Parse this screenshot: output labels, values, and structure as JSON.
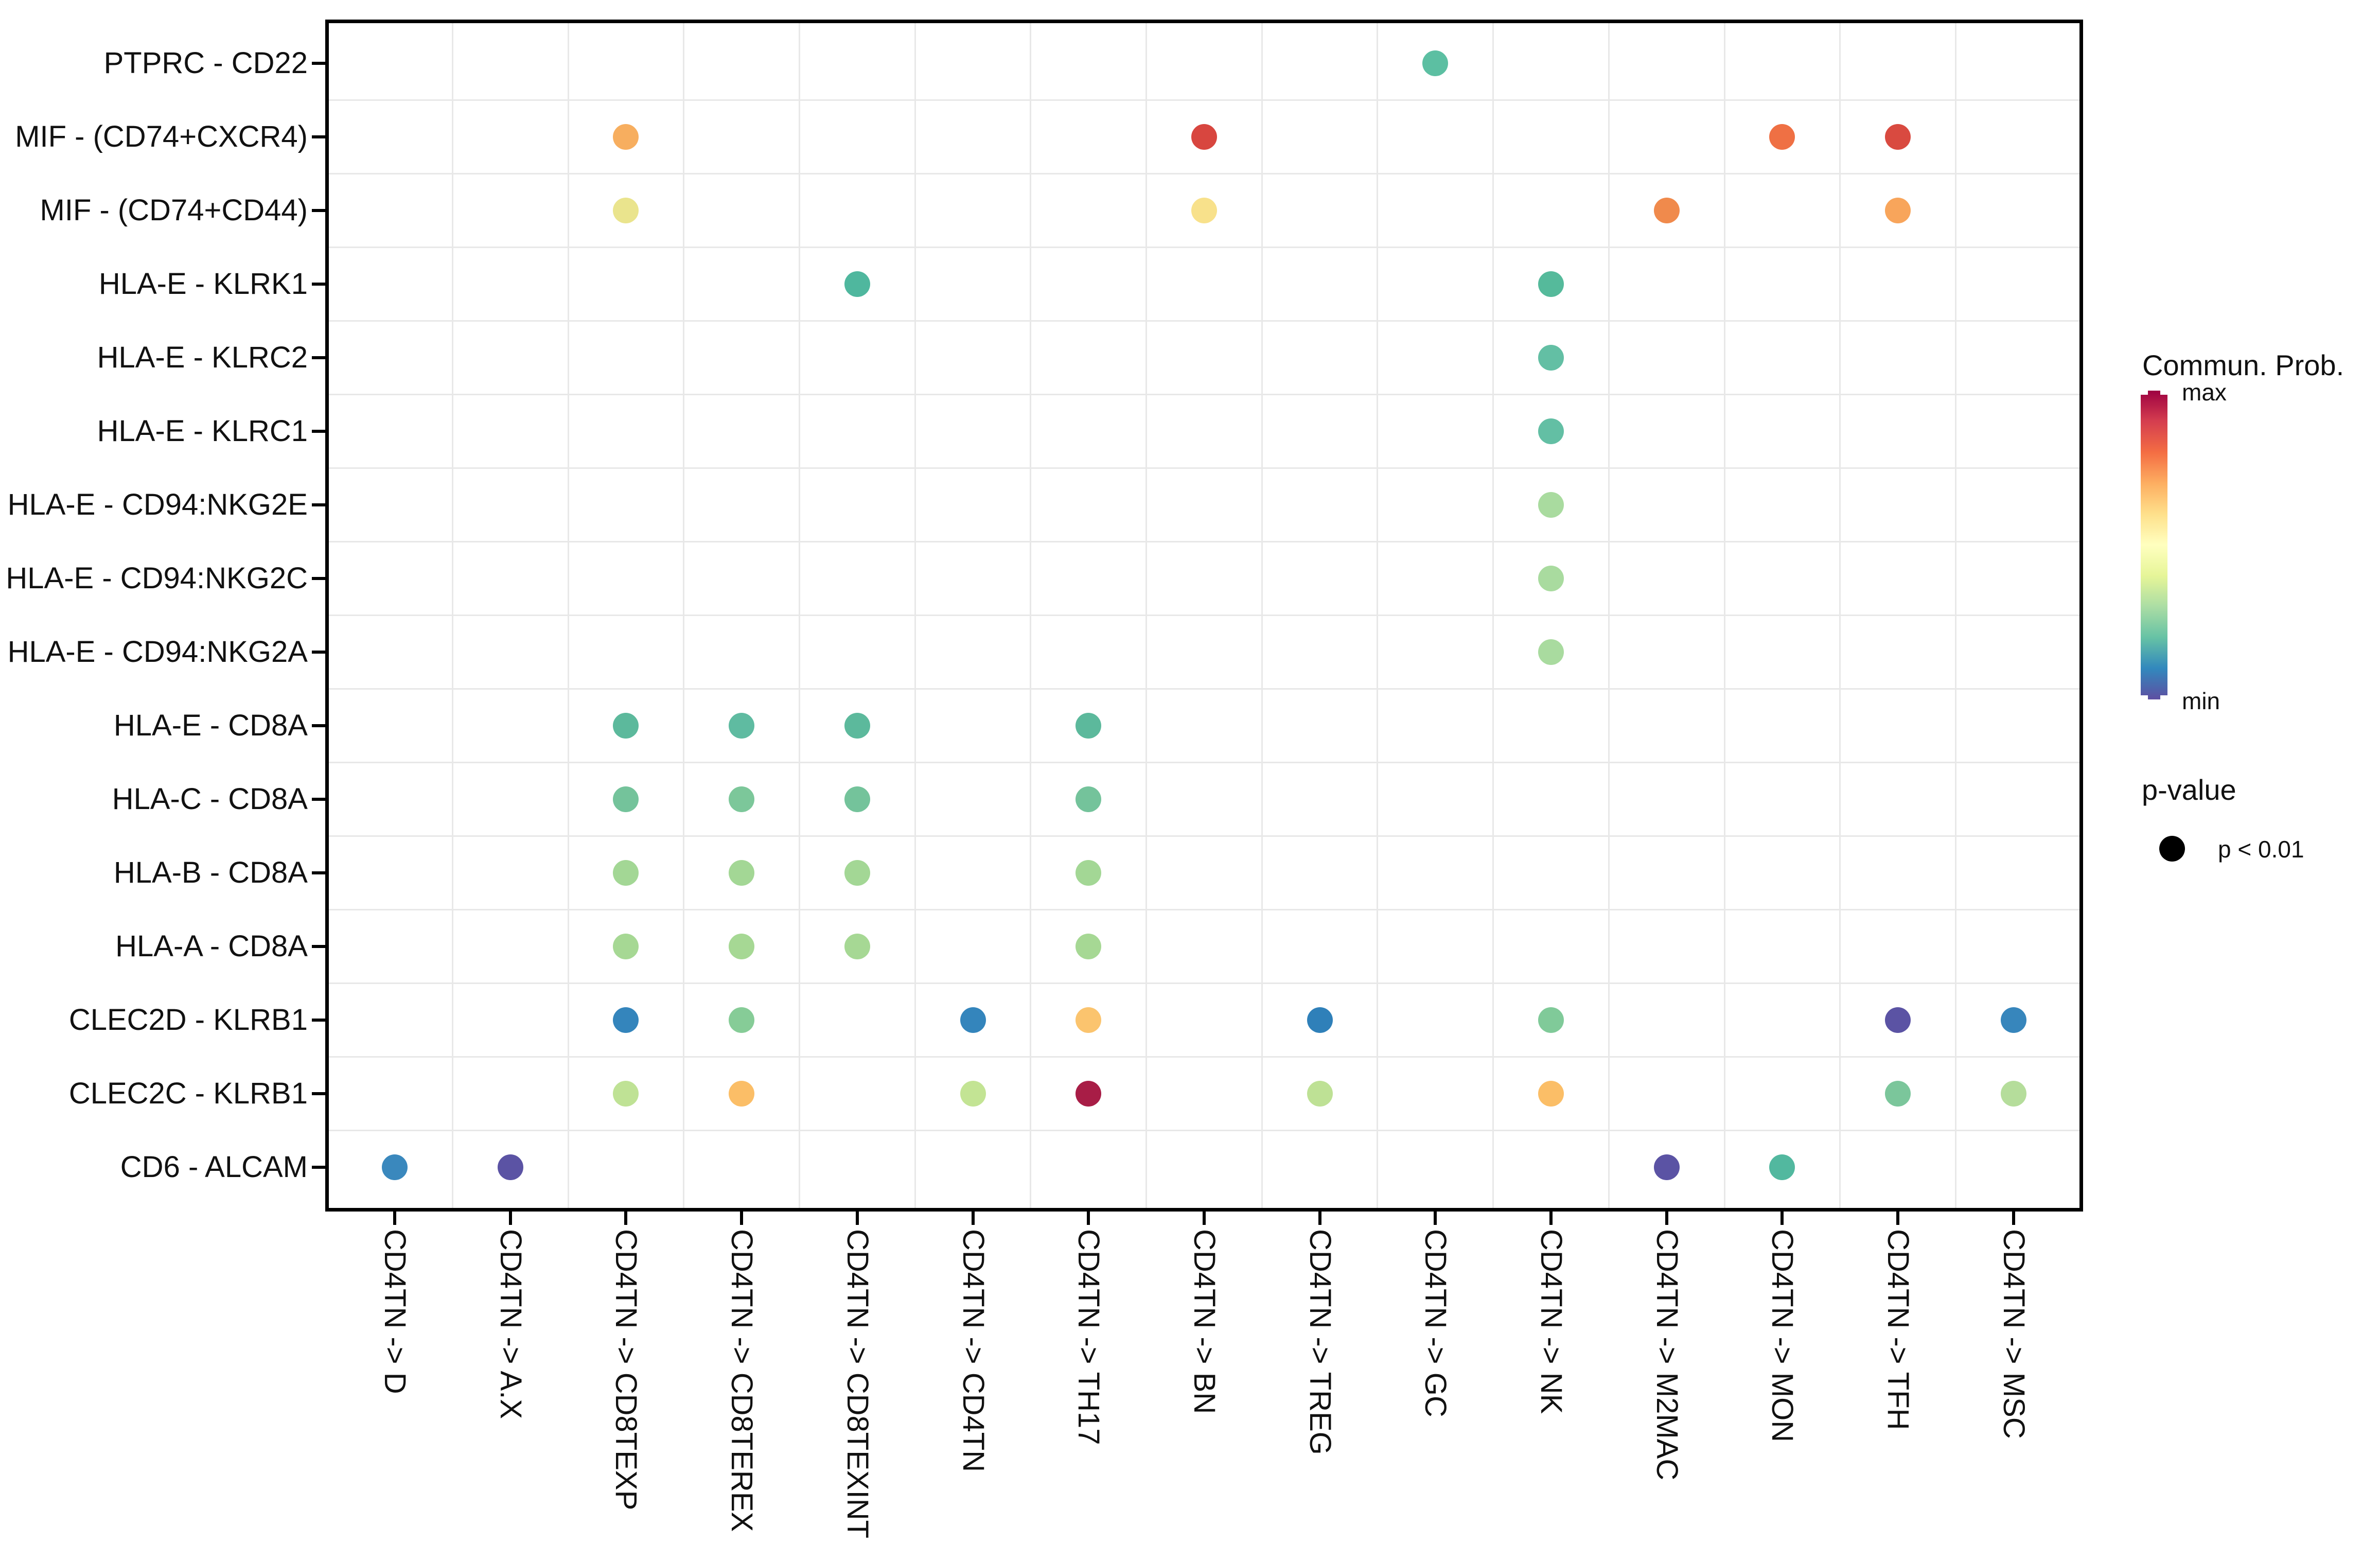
{
  "chart_data": {
    "type": "scatter",
    "subtype": "bubble-dot-plot",
    "title": "",
    "xlabel": "",
    "ylabel": "",
    "grid": "on-between-categories",
    "legend_position": "right",
    "x_categories": [
      "CD4TN -> D",
      "CD4TN -> A.X",
      "CD4TN -> CD8TEXP",
      "CD4TN -> CD8TEREX",
      "CD4TN -> CD8TEXINT",
      "CD4TN -> CD4TN",
      "CD4TN -> TH17",
      "CD4TN -> BN",
      "CD4TN -> TREG",
      "CD4TN -> GC",
      "CD4TN -> NK",
      "CD4TN -> M2MAC",
      "CD4TN -> MON",
      "CD4TN -> TFH",
      "CD4TN -> MSC"
    ],
    "y_categories": [
      "PTPRC - CD22",
      "MIF - (CD74+CXCR4)",
      "MIF - (CD74+CD44)",
      "HLA-E - KLRK1",
      "HLA-E - KLRC2",
      "HLA-E - KLRC1",
      "HLA-E - CD94:NKG2E",
      "HLA-E - CD94:NKG2C",
      "HLA-E - CD94:NKG2A",
      "HLA-E - CD8A",
      "HLA-C - CD8A",
      "HLA-B - CD8A",
      "HLA-A - CD8A",
      "CLEC2D - KLRB1",
      "CLEC2C - KLRB1",
      "CD6 - ALCAM"
    ],
    "points": [
      {
        "x": "CD4TN -> GC",
        "y": "PTPRC - CD22",
        "color": "#5CBFA2",
        "p": "p < 0.01"
      },
      {
        "x": "CD4TN -> CD8TEXP",
        "y": "MIF - (CD74+CXCR4)",
        "color": "#F7AE5F",
        "p": "p < 0.01"
      },
      {
        "x": "CD4TN -> BN",
        "y": "MIF - (CD74+CXCR4)",
        "color": "#D8463F",
        "p": "p < 0.01"
      },
      {
        "x": "CD4TN -> MON",
        "y": "MIF - (CD74+CXCR4)",
        "color": "#EF7044",
        "p": "p < 0.01"
      },
      {
        "x": "CD4TN -> TFH",
        "y": "MIF - (CD74+CXCR4)",
        "color": "#D94A40",
        "p": "p < 0.01"
      },
      {
        "x": "CD4TN -> CD8TEXP",
        "y": "MIF - (CD74+CD44)",
        "color": "#EAE48D",
        "p": "p < 0.01"
      },
      {
        "x": "CD4TN -> BN",
        "y": "MIF - (CD74+CD44)",
        "color": "#F8E18B",
        "p": "p < 0.01"
      },
      {
        "x": "CD4TN -> M2MAC",
        "y": "MIF - (CD74+CD44)",
        "color": "#F08A4C",
        "p": "p < 0.01"
      },
      {
        "x": "CD4TN -> TFH",
        "y": "MIF - (CD74+CD44)",
        "color": "#F8A55B",
        "p": "p < 0.01"
      },
      {
        "x": "CD4TN -> CD8TEXINT",
        "y": "HLA-E - KLRK1",
        "color": "#4FB79E",
        "p": "p < 0.01"
      },
      {
        "x": "CD4TN -> NK",
        "y": "HLA-E - KLRK1",
        "color": "#55BA9B",
        "p": "p < 0.01"
      },
      {
        "x": "CD4TN -> NK",
        "y": "HLA-E - KLRC2",
        "color": "#63BFA4",
        "p": "p < 0.01"
      },
      {
        "x": "CD4TN -> NK",
        "y": "HLA-E - KLRC1",
        "color": "#63BFA4",
        "p": "p < 0.01"
      },
      {
        "x": "CD4TN -> NK",
        "y": "HLA-E - CD94:NKG2E",
        "color": "#A9DB9F",
        "p": "p < 0.01"
      },
      {
        "x": "CD4TN -> NK",
        "y": "HLA-E - CD94:NKG2C",
        "color": "#A9DB9F",
        "p": "p < 0.01"
      },
      {
        "x": "CD4TN -> NK",
        "y": "HLA-E - CD94:NKG2A",
        "color": "#A9DB9F",
        "p": "p < 0.01"
      },
      {
        "x": "CD4TN -> CD8TEXP",
        "y": "HLA-E - CD8A",
        "color": "#5CB99C",
        "p": "p < 0.01"
      },
      {
        "x": "CD4TN -> CD8TEREX",
        "y": "HLA-E - CD8A",
        "color": "#5FBBA1",
        "p": "p < 0.01"
      },
      {
        "x": "CD4TN -> CD8TEXINT",
        "y": "HLA-E - CD8A",
        "color": "#5CB99C",
        "p": "p < 0.01"
      },
      {
        "x": "CD4TN -> TH17",
        "y": "HLA-E - CD8A",
        "color": "#5CB99C",
        "p": "p < 0.01"
      },
      {
        "x": "CD4TN -> CD8TEXP",
        "y": "HLA-C - CD8A",
        "color": "#74C39B",
        "p": "p < 0.01"
      },
      {
        "x": "CD4TN -> CD8TEREX",
        "y": "HLA-C - CD8A",
        "color": "#7CC79A",
        "p": "p < 0.01"
      },
      {
        "x": "CD4TN -> CD8TEXINT",
        "y": "HLA-C - CD8A",
        "color": "#74C39B",
        "p": "p < 0.01"
      },
      {
        "x": "CD4TN -> TH17",
        "y": "HLA-C - CD8A",
        "color": "#74C39B",
        "p": "p < 0.01"
      },
      {
        "x": "CD4TN -> CD8TEXP",
        "y": "HLA-B - CD8A",
        "color": "#A3D795",
        "p": "p < 0.01"
      },
      {
        "x": "CD4TN -> CD8TEREX",
        "y": "HLA-B - CD8A",
        "color": "#A3D795",
        "p": "p < 0.01"
      },
      {
        "x": "CD4TN -> CD8TEXINT",
        "y": "HLA-B - CD8A",
        "color": "#A3D795",
        "p": "p < 0.01"
      },
      {
        "x": "CD4TN -> TH17",
        "y": "HLA-B - CD8A",
        "color": "#A3D795",
        "p": "p < 0.01"
      },
      {
        "x": "CD4TN -> CD8TEXP",
        "y": "HLA-A - CD8A",
        "color": "#A6D894",
        "p": "p < 0.01"
      },
      {
        "x": "CD4TN -> CD8TEREX",
        "y": "HLA-A - CD8A",
        "color": "#A6D894",
        "p": "p < 0.01"
      },
      {
        "x": "CD4TN -> CD8TEXINT",
        "y": "HLA-A - CD8A",
        "color": "#A6D894",
        "p": "p < 0.01"
      },
      {
        "x": "CD4TN -> TH17",
        "y": "HLA-A - CD8A",
        "color": "#A6D894",
        "p": "p < 0.01"
      },
      {
        "x": "CD4TN -> CD8TEXP",
        "y": "CLEC2D - KLRB1",
        "color": "#3485BC",
        "p": "p < 0.01"
      },
      {
        "x": "CD4TN -> CD8TEREX",
        "y": "CLEC2D - KLRB1",
        "color": "#86CC97",
        "p": "p < 0.01"
      },
      {
        "x": "CD4TN -> CD4TN",
        "y": "CLEC2D - KLRB1",
        "color": "#3485BC",
        "p": "p < 0.01"
      },
      {
        "x": "CD4TN -> TH17",
        "y": "CLEC2D - KLRB1",
        "color": "#FBC46E",
        "p": "p < 0.01"
      },
      {
        "x": "CD4TN -> TREG",
        "y": "CLEC2D - KLRB1",
        "color": "#2F80B9",
        "p": "p < 0.01"
      },
      {
        "x": "CD4TN -> NK",
        "y": "CLEC2D - KLRB1",
        "color": "#80CA99",
        "p": "p < 0.01"
      },
      {
        "x": "CD4TN -> TFH",
        "y": "CLEC2D - KLRB1",
        "color": "#5B53A4",
        "p": "p < 0.01"
      },
      {
        "x": "CD4TN -> MSC",
        "y": "CLEC2D - KLRB1",
        "color": "#3786BC",
        "p": "p < 0.01"
      },
      {
        "x": "CD4TN -> CD8TEXP",
        "y": "CLEC2C - KLRB1",
        "color": "#BFE295",
        "p": "p < 0.01"
      },
      {
        "x": "CD4TN -> CD8TEREX",
        "y": "CLEC2C - KLRB1",
        "color": "#FBBE67",
        "p": "p < 0.01"
      },
      {
        "x": "CD4TN -> CD4TN",
        "y": "CLEC2C - KLRB1",
        "color": "#C3E494",
        "p": "p < 0.01"
      },
      {
        "x": "CD4TN -> TH17",
        "y": "CLEC2C - KLRB1",
        "color": "#A81D46",
        "p": "p < 0.01"
      },
      {
        "x": "CD4TN -> TREG",
        "y": "CLEC2C - KLRB1",
        "color": "#BEE195",
        "p": "p < 0.01"
      },
      {
        "x": "CD4TN -> NK",
        "y": "CLEC2C - KLRB1",
        "color": "#FBBE67",
        "p": "p < 0.01"
      },
      {
        "x": "CD4TN -> TFH",
        "y": "CLEC2C - KLRB1",
        "color": "#7BC69B",
        "p": "p < 0.01"
      },
      {
        "x": "CD4TN -> MSC",
        "y": "CLEC2C - KLRB1",
        "color": "#B5DD9B",
        "p": "p < 0.01"
      },
      {
        "x": "CD4TN -> D",
        "y": "CD6 - ALCAM",
        "color": "#3A88BD",
        "p": "p < 0.01"
      },
      {
        "x": "CD4TN -> A.X",
        "y": "CD6 - ALCAM",
        "color": "#5B53A4",
        "p": "p < 0.01"
      },
      {
        "x": "CD4TN -> M2MAC",
        "y": "CD6 - ALCAM",
        "color": "#5B53A4",
        "p": "p < 0.01"
      },
      {
        "x": "CD4TN -> MON",
        "y": "CD6 - ALCAM",
        "color": "#52B89F",
        "p": "p < 0.01"
      }
    ],
    "color_scale": {
      "title": "Commun. Prob.",
      "max_label": "max",
      "min_label": "min",
      "palette_top_to_bottom": [
        "#9E0142",
        "#D53E4F",
        "#F46D43",
        "#FDAE61",
        "#FEE08B",
        "#FFFFBF",
        "#E6F598",
        "#ABDDA4",
        "#66C2A5",
        "#3288BD",
        "#5E4FA2"
      ]
    },
    "size_legend": {
      "title": "p-value",
      "items": [
        "p < 0.01"
      ]
    }
  },
  "legend": {
    "commun_title": "Commun. Prob.",
    "max": "max",
    "min": "min",
    "pvalue_title": "p-value",
    "pvalue_item": "p < 0.01"
  }
}
